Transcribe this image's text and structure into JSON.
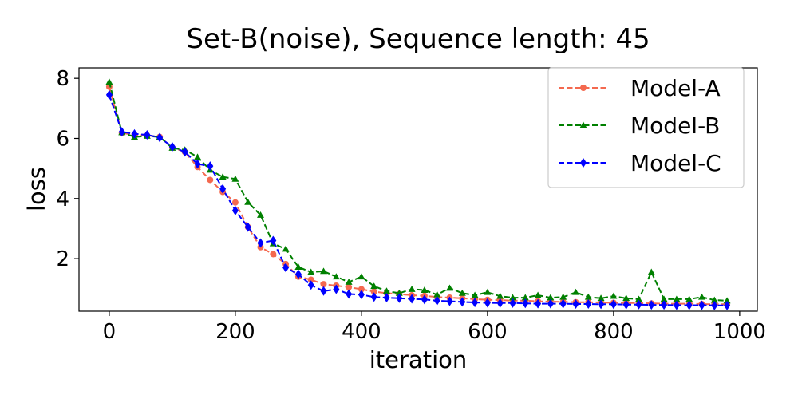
{
  "chart_data": {
    "type": "line",
    "title": "Set-B(noise), Sequence length: 45",
    "xlabel": "iteration",
    "ylabel": "loss",
    "xlim": [
      -48,
      1028
    ],
    "ylim": [
      0.25,
      8.35
    ],
    "xticks": [
      0,
      200,
      400,
      600,
      800,
      1000
    ],
    "yticks": [
      2,
      4,
      6,
      8
    ],
    "grid": false,
    "legend_position": "top-right",
    "x": [
      0,
      20,
      40,
      60,
      80,
      100,
      120,
      140,
      160,
      180,
      200,
      220,
      240,
      260,
      280,
      300,
      320,
      340,
      360,
      380,
      400,
      420,
      440,
      460,
      480,
      500,
      520,
      540,
      560,
      580,
      600,
      620,
      640,
      660,
      680,
      700,
      720,
      740,
      760,
      780,
      800,
      820,
      840,
      860,
      880,
      900,
      920,
      940,
      960,
      980
    ],
    "series": [
      {
        "name": "Model-A",
        "color": "#f4694f",
        "marker": "circle",
        "values": [
          7.72,
          6.18,
          6.12,
          6.1,
          6.05,
          5.7,
          5.55,
          5.05,
          4.62,
          4.22,
          3.87,
          3.05,
          2.38,
          2.15,
          1.82,
          1.4,
          1.3,
          1.15,
          1.1,
          1.05,
          0.98,
          0.9,
          0.85,
          0.82,
          0.78,
          0.76,
          0.72,
          0.7,
          0.68,
          0.65,
          0.63,
          0.62,
          0.6,
          0.6,
          0.58,
          0.57,
          0.56,
          0.55,
          0.55,
          0.54,
          0.53,
          0.52,
          0.52,
          0.51,
          0.5,
          0.5,
          0.5,
          0.49,
          0.48,
          0.48
        ]
      },
      {
        "name": "Model-B",
        "color": "#008000",
        "marker": "triangle",
        "values": [
          7.88,
          6.2,
          6.05,
          6.08,
          6.05,
          5.68,
          5.62,
          5.38,
          4.95,
          4.72,
          4.65,
          3.88,
          3.45,
          2.5,
          2.32,
          1.72,
          1.55,
          1.58,
          1.4,
          1.22,
          1.4,
          1.08,
          0.92,
          0.85,
          0.98,
          0.95,
          0.8,
          1.02,
          0.85,
          0.78,
          0.88,
          0.75,
          0.7,
          0.7,
          0.78,
          0.7,
          0.72,
          0.88,
          0.72,
          0.68,
          0.75,
          0.68,
          0.65,
          1.55,
          0.65,
          0.65,
          0.65,
          0.72,
          0.62,
          0.6
        ]
      },
      {
        "name": "Model-C",
        "color": "#0000ff",
        "marker": "diamond",
        "values": [
          7.45,
          6.22,
          6.15,
          6.12,
          6.03,
          5.72,
          5.55,
          5.15,
          5.08,
          4.32,
          3.6,
          3.05,
          2.52,
          2.6,
          1.7,
          1.48,
          1.12,
          0.92,
          0.98,
          0.82,
          0.8,
          0.72,
          0.7,
          0.68,
          0.66,
          0.64,
          0.6,
          0.58,
          0.56,
          0.54,
          0.53,
          0.52,
          0.52,
          0.51,
          0.5,
          0.5,
          0.5,
          0.49,
          0.49,
          0.48,
          0.48,
          0.47,
          0.47,
          0.46,
          0.46,
          0.45,
          0.45,
          0.45,
          0.44,
          0.44
        ]
      }
    ]
  }
}
